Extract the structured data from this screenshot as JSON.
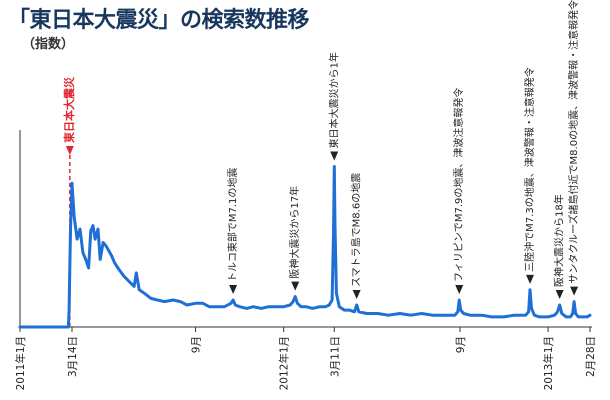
{
  "header": {
    "title": "「東日本大震災」の検索数推移",
    "unit": "（指数）"
  },
  "chart_data": {
    "type": "line",
    "title": "「東日本大震災」の検索数推移",
    "ylabel": "（指数）",
    "xlim": [
      "2011-01-01",
      "2013-02-28"
    ],
    "ylim": [
      0,
      100
    ],
    "grid": false,
    "color": "#1f6fd6",
    "event_color": "#e0262f",
    "x_ticks": [
      {
        "date": "2011-01-01",
        "label": "2011年1月"
      },
      {
        "date": "2011-03-14",
        "label": "3月14日"
      },
      {
        "date": "2011-09-01",
        "label": "9月"
      },
      {
        "date": "2012-01-01",
        "label": "2012年1月"
      },
      {
        "date": "2012-03-11",
        "label": "3月11日"
      },
      {
        "date": "2012-09-01",
        "label": "9月"
      },
      {
        "date": "2013-01-01",
        "label": "2013年1月"
      },
      {
        "date": "2013-02-28",
        "label": "2月28日"
      }
    ],
    "annotations": [
      {
        "date": "2011-03-11",
        "label": "東日本大震災",
        "highlight": true
      },
      {
        "date": "2011-10-23",
        "label": "トルコ東部でM7.1の地震"
      },
      {
        "date": "2012-01-17",
        "label": "阪神大震災から17年"
      },
      {
        "date": "2012-03-11",
        "label": "東日本大震災から1年"
      },
      {
        "date": "2012-04-11",
        "label": "スマトラ島でM8.6の地震"
      },
      {
        "date": "2012-08-31",
        "label": "フィリピンでM7.9の地震、津波注意報発令"
      },
      {
        "date": "2012-12-07",
        "label": "三陸沖でM7.3の地震、津波警報・注意報発令"
      },
      {
        "date": "2013-01-17",
        "label": "阪神大震災から18年"
      },
      {
        "date": "2013-02-06",
        "label": "サンタクルーズ諸島付近でM8.0の地震、津波警報・注意報発令"
      }
    ],
    "series": [
      {
        "x": [
          "2011-01-01",
          "2011-03-09",
          "2011-03-10",
          "2011-03-11",
          "2011-03-12",
          "2011-03-13",
          "2011-03-14",
          "2011-03-17",
          "2011-03-21",
          "2011-03-25",
          "2011-03-29",
          "2011-04-02",
          "2011-04-06",
          "2011-04-09",
          "2011-04-12",
          "2011-04-15",
          "2011-04-19",
          "2011-04-22",
          "2011-04-26",
          "2011-04-30",
          "2011-05-04",
          "2011-05-08",
          "2011-05-12",
          "2011-05-18",
          "2011-05-25",
          "2011-06-01",
          "2011-06-08",
          "2011-06-11",
          "2011-06-15",
          "2011-06-22",
          "2011-07-01",
          "2011-07-10",
          "2011-07-20",
          "2011-08-01",
          "2011-08-11",
          "2011-08-20",
          "2011-09-01",
          "2011-09-11",
          "2011-09-20",
          "2011-10-01",
          "2011-10-11",
          "2011-10-20",
          "2011-10-23",
          "2011-10-26",
          "2011-11-01",
          "2011-11-11",
          "2011-11-20",
          "2011-12-01",
          "2011-12-11",
          "2011-12-20",
          "2012-01-01",
          "2012-01-10",
          "2012-01-14",
          "2012-01-17",
          "2012-01-20",
          "2012-01-25",
          "2012-02-01",
          "2012-02-10",
          "2012-02-20",
          "2012-02-28",
          "2012-03-04",
          "2012-03-08",
          "2012-03-10",
          "2012-03-11",
          "2012-03-12",
          "2012-03-14",
          "2012-03-18",
          "2012-03-25",
          "2012-04-01",
          "2012-04-08",
          "2012-04-11",
          "2012-04-14",
          "2012-04-25",
          "2012-05-10",
          "2012-05-25",
          "2012-06-10",
          "2012-06-25",
          "2012-07-10",
          "2012-07-25",
          "2012-08-10",
          "2012-08-25",
          "2012-08-29",
          "2012-08-31",
          "2012-09-02",
          "2012-09-06",
          "2012-09-15",
          "2012-10-01",
          "2012-10-15",
          "2012-11-01",
          "2012-11-15",
          "2012-12-01",
          "2012-12-05",
          "2012-12-07",
          "2012-12-09",
          "2012-12-13",
          "2012-12-20",
          "2013-01-01",
          "2013-01-10",
          "2013-01-14",
          "2013-01-17",
          "2013-01-20",
          "2013-01-26",
          "2013-02-01",
          "2013-02-04",
          "2013-02-06",
          "2013-02-08",
          "2013-02-12",
          "2013-02-18",
          "2013-02-24",
          "2013-02-28"
        ],
        "values": [
          0,
          0,
          10,
          35,
          60,
          72,
          85,
          65,
          52,
          58,
          44,
          40,
          35,
          57,
          60,
          52,
          58,
          40,
          50,
          48,
          45,
          42,
          38,
          34,
          30,
          27,
          24,
          32,
          22,
          20,
          17,
          16,
          15,
          16,
          15,
          13,
          14,
          14,
          12,
          12,
          12,
          14,
          16,
          13,
          12,
          11,
          12,
          11,
          12,
          12,
          12,
          13,
          15,
          18,
          14,
          12,
          12,
          11,
          12,
          12,
          13,
          16,
          55,
          95,
          60,
          20,
          12,
          10,
          10,
          9,
          13,
          9,
          8,
          8,
          7,
          8,
          7,
          8,
          7,
          7,
          7,
          9,
          16,
          10,
          8,
          7,
          7,
          6,
          6,
          7,
          7,
          9,
          22,
          11,
          7,
          6,
          6,
          7,
          9,
          13,
          8,
          6,
          6,
          8,
          15,
          8,
          6,
          6,
          6,
          7
        ]
      }
    ]
  }
}
